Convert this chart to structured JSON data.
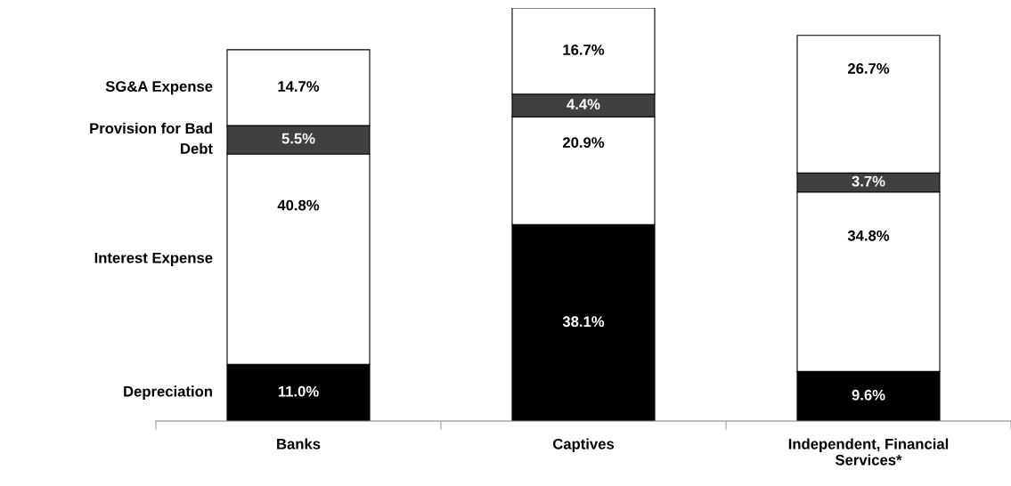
{
  "chart_data": {
    "type": "bar",
    "stacked": true,
    "legend": "left",
    "categories": [
      "Banks",
      "Captives",
      "Independent, Financial\nServices*"
    ],
    "series": [
      {
        "name": "Depreciation",
        "color": "#000000",
        "values": [
          11.0,
          38.1,
          9.6
        ],
        "value_labels": [
          "11.0%",
          "38.1%",
          "9.6%"
        ]
      },
      {
        "name": "Interest Expense",
        "color": "#ffffff",
        "values": [
          40.8,
          20.9,
          34.8
        ],
        "value_labels": [
          "40.8%",
          "20.9%",
          "34.8%"
        ]
      },
      {
        "name": "Provision for Bad\nDebt",
        "color": "#404040",
        "values": [
          5.5,
          4.4,
          3.7
        ],
        "value_labels": [
          "5.5%",
          "4.4%",
          "3.7%"
        ]
      },
      {
        "name": "SG&A Expense",
        "color": "#ffffff",
        "values": [
          14.7,
          16.7,
          26.7
        ],
        "value_labels": [
          "14.7%",
          "16.7%",
          "26.7%"
        ]
      }
    ]
  }
}
